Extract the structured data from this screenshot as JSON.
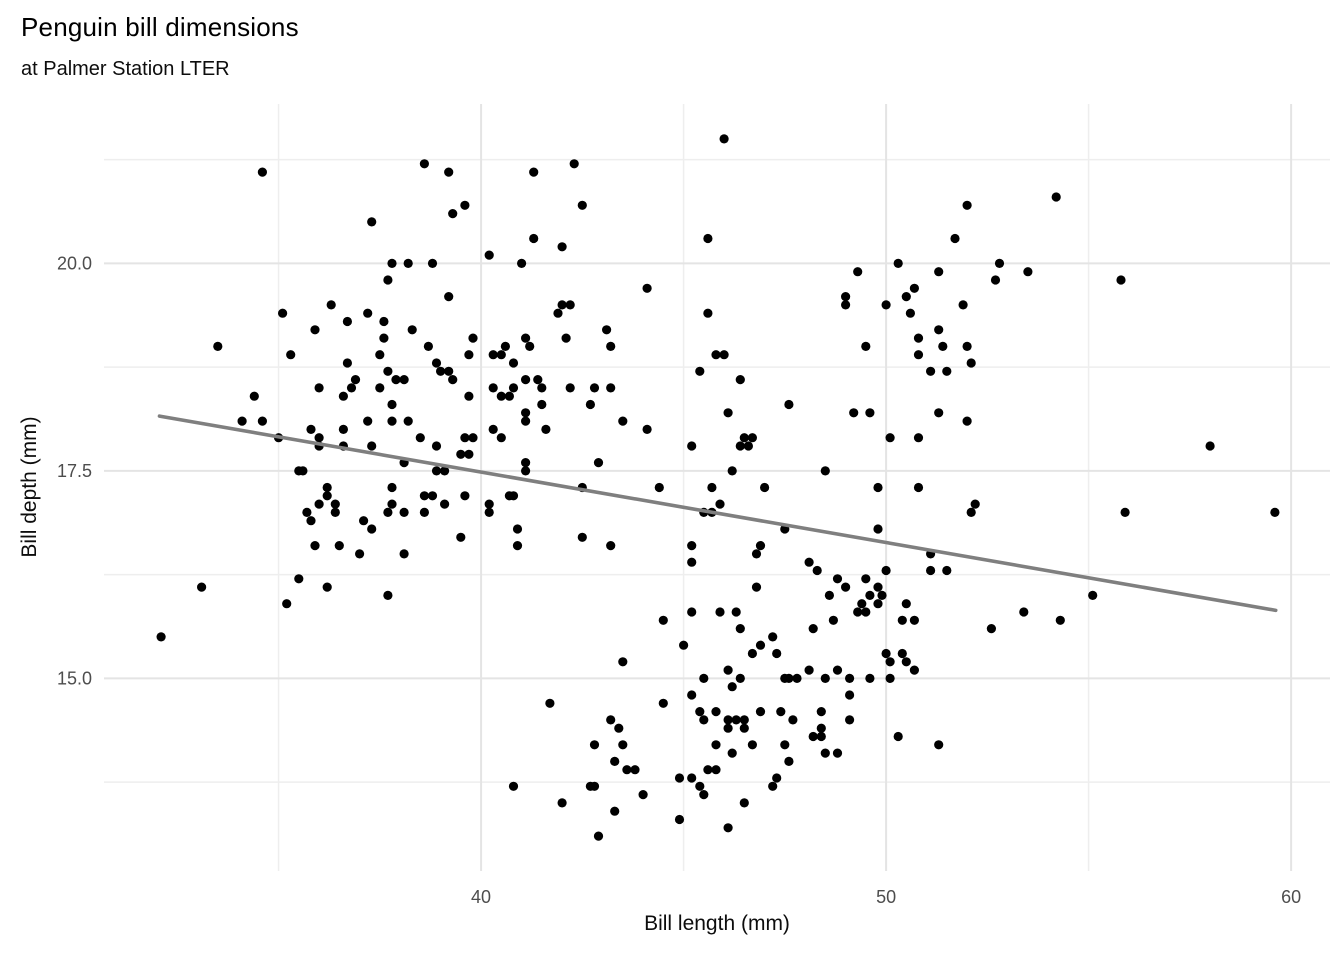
{
  "header": {
    "title": "Penguin bill dimensions",
    "subtitle": "at Palmer Station LTER"
  },
  "chart_data": {
    "type": "scatter",
    "title": "Penguin bill dimensions",
    "subtitle": "at Palmer Station LTER",
    "xlabel": "Bill length (mm)",
    "ylabel": "Bill depth (mm)",
    "xlim": [
      30.69,
      60.96
    ],
    "ylim": [
      12.68,
      21.92
    ],
    "x_major_ticks": [
      40,
      50,
      60
    ],
    "x_tick_labels": [
      "40",
      "50",
      "60"
    ],
    "x_minor_gridlines": [
      35,
      45,
      55
    ],
    "y_major_ticks": [
      15.0,
      17.5,
      20.0
    ],
    "y_tick_labels": [
      "15.0",
      "17.5",
      "20.0"
    ],
    "y_minor_gridlines": [
      13.75,
      16.25,
      18.75,
      21.25
    ],
    "grid": "major and minor gridlines on white background, no panel border, no tick marks",
    "legend": "none",
    "style": {
      "background_color": "#FFFFFF",
      "grid_major_color": "#E4E4E4",
      "grid_minor_color": "#EEEEEE",
      "grid_major_width": 2,
      "grid_minor_width": 1.5,
      "point_color": "#000000",
      "point_radius": 4.6,
      "trend_color": "#7F7F7F",
      "trend_width": 3.6,
      "tick_label_color": "#4D4D4D",
      "tick_label_size": 18
    },
    "trend_line": {
      "type": "linear-regression",
      "x_start": 32.06,
      "y_start": 18.16,
      "x_end": 59.62,
      "y_end": 15.82
    },
    "points": [
      [
        34.6,
        21.1
      ],
      [
        38.6,
        21.2
      ],
      [
        39.2,
        21.1
      ],
      [
        39.3,
        20.6
      ],
      [
        39.6,
        20.7
      ],
      [
        37.3,
        20.5
      ],
      [
        40.2,
        20.1
      ],
      [
        37.8,
        20.0
      ],
      [
        38.2,
        20.0
      ],
      [
        38.8,
        20.0
      ],
      [
        37.7,
        19.8
      ],
      [
        39.2,
        19.6
      ],
      [
        36.3,
        19.5
      ],
      [
        35.1,
        19.4
      ],
      [
        36.7,
        19.3
      ],
      [
        37.2,
        19.4
      ],
      [
        37.6,
        19.3
      ],
      [
        37.6,
        19.1
      ],
      [
        35.9,
        19.2
      ],
      [
        38.3,
        19.2
      ],
      [
        33.5,
        19.0
      ],
      [
        38.7,
        19.0
      ],
      [
        39.8,
        19.1
      ],
      [
        40.6,
        19.0
      ],
      [
        39.7,
        18.9
      ],
      [
        40.3,
        18.9
      ],
      [
        46.0,
        21.5
      ],
      [
        42.3,
        21.2
      ],
      [
        41.3,
        21.1
      ],
      [
        42.5,
        20.7
      ],
      [
        41.3,
        20.3
      ],
      [
        42.0,
        20.2
      ],
      [
        45.6,
        20.3
      ],
      [
        41.0,
        20.0
      ],
      [
        50.3,
        20.0
      ],
      [
        49.3,
        19.9
      ],
      [
        44.1,
        19.7
      ],
      [
        49.0,
        19.6
      ],
      [
        49.0,
        19.5
      ],
      [
        50.7,
        19.7
      ],
      [
        50.5,
        19.6
      ],
      [
        50.0,
        19.5
      ],
      [
        50.6,
        19.4
      ],
      [
        45.6,
        19.4
      ],
      [
        41.9,
        19.4
      ],
      [
        42.0,
        19.5
      ],
      [
        42.2,
        19.5
      ],
      [
        43.1,
        19.2
      ],
      [
        43.2,
        19.0
      ],
      [
        42.1,
        19.1
      ],
      [
        41.1,
        19.1
      ],
      [
        41.2,
        19.0
      ],
      [
        49.5,
        19.0
      ],
      [
        50.8,
        19.1
      ],
      [
        50.8,
        18.9
      ],
      [
        54.2,
        20.8
      ],
      [
        52.0,
        20.7
      ],
      [
        51.7,
        20.3
      ],
      [
        52.8,
        20.0
      ],
      [
        51.3,
        19.9
      ],
      [
        53.5,
        19.9
      ],
      [
        52.7,
        19.8
      ],
      [
        55.8,
        19.8
      ],
      [
        51.9,
        19.5
      ],
      [
        51.3,
        19.2
      ],
      [
        51.4,
        19.0
      ],
      [
        52.0,
        19.0
      ],
      [
        35.3,
        18.9
      ],
      [
        36.7,
        18.8
      ],
      [
        37.5,
        18.9
      ],
      [
        37.7,
        18.7
      ],
      [
        36.9,
        18.6
      ],
      [
        36.8,
        18.5
      ],
      [
        36.0,
        18.5
      ],
      [
        36.6,
        18.4
      ],
      [
        37.9,
        18.6
      ],
      [
        38.1,
        18.6
      ],
      [
        37.5,
        18.5
      ],
      [
        38.9,
        18.8
      ],
      [
        39.0,
        18.7
      ],
      [
        39.2,
        18.7
      ],
      [
        39.3,
        18.6
      ],
      [
        39.7,
        18.4
      ],
      [
        40.5,
        18.9
      ],
      [
        40.8,
        18.8
      ],
      [
        34.4,
        18.4
      ],
      [
        34.1,
        18.1
      ],
      [
        34.6,
        18.1
      ],
      [
        35.0,
        17.9
      ],
      [
        35.8,
        18.0
      ],
      [
        36.0,
        17.9
      ],
      [
        36.0,
        17.8
      ],
      [
        36.6,
        18.0
      ],
      [
        36.6,
        17.8
      ],
      [
        37.3,
        17.8
      ],
      [
        37.2,
        18.1
      ],
      [
        37.8,
        18.3
      ],
      [
        37.8,
        18.1
      ],
      [
        38.2,
        18.1
      ],
      [
        38.1,
        17.6
      ],
      [
        38.5,
        17.9
      ],
      [
        38.9,
        17.8
      ],
      [
        38.9,
        17.5
      ],
      [
        39.1,
        17.5
      ],
      [
        39.6,
        17.9
      ],
      [
        39.8,
        17.9
      ],
      [
        39.5,
        17.7
      ],
      [
        39.7,
        17.7
      ],
      [
        40.3,
        18.5
      ],
      [
        40.5,
        18.4
      ],
      [
        40.7,
        18.4
      ],
      [
        40.3,
        18.0
      ],
      [
        40.5,
        17.9
      ],
      [
        40.8,
        18.5
      ],
      [
        35.5,
        17.5
      ],
      [
        35.6,
        17.5
      ],
      [
        36.2,
        17.3
      ],
      [
        36.2,
        17.2
      ],
      [
        36.4,
        17.1
      ],
      [
        36.4,
        17.0
      ],
      [
        36.0,
        17.1
      ],
      [
        35.7,
        17.0
      ],
      [
        35.8,
        16.9
      ],
      [
        37.1,
        16.9
      ],
      [
        37.3,
        16.8
      ],
      [
        37.8,
        17.3
      ],
      [
        37.8,
        17.1
      ],
      [
        37.7,
        17.0
      ],
      [
        38.1,
        17.0
      ],
      [
        38.6,
        17.2
      ],
      [
        38.8,
        17.2
      ],
      [
        39.1,
        17.1
      ],
      [
        38.6,
        17.0
      ],
      [
        39.6,
        17.2
      ],
      [
        40.2,
        17.1
      ],
      [
        40.2,
        17.0
      ],
      [
        40.7,
        17.2
      ],
      [
        40.8,
        17.2
      ],
      [
        39.5,
        16.7
      ],
      [
        35.9,
        16.6
      ],
      [
        36.5,
        16.6
      ],
      [
        37.0,
        16.5
      ],
      [
        38.1,
        16.5
      ],
      [
        33.1,
        16.1
      ],
      [
        35.5,
        16.2
      ],
      [
        36.2,
        16.1
      ],
      [
        37.7,
        16.0
      ],
      [
        35.2,
        15.9
      ],
      [
        45.8,
        18.9
      ],
      [
        46.0,
        18.9
      ],
      [
        45.4,
        18.7
      ],
      [
        46.4,
        18.6
      ],
      [
        41.1,
        18.6
      ],
      [
        41.4,
        18.6
      ],
      [
        41.5,
        18.5
      ],
      [
        42.2,
        18.5
      ],
      [
        42.8,
        18.5
      ],
      [
        43.2,
        18.5
      ],
      [
        41.5,
        18.3
      ],
      [
        42.7,
        18.3
      ],
      [
        47.6,
        18.3
      ],
      [
        46.1,
        18.2
      ],
      [
        41.1,
        18.2
      ],
      [
        41.1,
        18.1
      ],
      [
        41.6,
        18.0
      ],
      [
        43.5,
        18.1
      ],
      [
        44.1,
        18.0
      ],
      [
        49.2,
        18.2
      ],
      [
        49.6,
        18.2
      ],
      [
        50.1,
        17.9
      ],
      [
        50.8,
        17.9
      ],
      [
        45.2,
        17.8
      ],
      [
        46.5,
        17.9
      ],
      [
        46.7,
        17.9
      ],
      [
        46.4,
        17.8
      ],
      [
        46.6,
        17.8
      ],
      [
        42.9,
        17.6
      ],
      [
        41.1,
        17.6
      ],
      [
        41.1,
        17.5
      ],
      [
        46.2,
        17.5
      ],
      [
        48.5,
        17.5
      ],
      [
        42.5,
        17.3
      ],
      [
        44.4,
        17.3
      ],
      [
        45.7,
        17.3
      ],
      [
        47.0,
        17.3
      ],
      [
        49.8,
        17.3
      ],
      [
        50.8,
        17.3
      ],
      [
        45.9,
        17.1
      ],
      [
        45.5,
        17.0
      ],
      [
        45.7,
        17.0
      ],
      [
        47.5,
        16.8
      ],
      [
        49.8,
        16.8
      ],
      [
        40.9,
        16.8
      ],
      [
        40.9,
        16.6
      ],
      [
        42.5,
        16.7
      ],
      [
        43.2,
        16.6
      ],
      [
        45.2,
        16.6
      ],
      [
        45.2,
        16.4
      ],
      [
        46.9,
        16.6
      ],
      [
        46.8,
        16.5
      ],
      [
        48.1,
        16.4
      ],
      [
        48.3,
        16.3
      ],
      [
        50.0,
        16.3
      ],
      [
        48.8,
        16.2
      ],
      [
        49.0,
        16.1
      ],
      [
        49.5,
        16.2
      ],
      [
        49.6,
        16.0
      ],
      [
        49.4,
        15.9
      ],
      [
        48.6,
        16.0
      ],
      [
        49.8,
        16.1
      ],
      [
        49.9,
        16.0
      ],
      [
        46.8,
        16.1
      ],
      [
        50.5,
        15.9
      ],
      [
        49.8,
        15.9
      ],
      [
        52.1,
        18.8
      ],
      [
        51.5,
        18.7
      ],
      [
        51.1,
        18.7
      ],
      [
        51.3,
        18.2
      ],
      [
        52.0,
        18.1
      ],
      [
        58.0,
        17.8
      ],
      [
        52.2,
        17.1
      ],
      [
        52.1,
        17.0
      ],
      [
        55.9,
        17.0
      ],
      [
        59.6,
        17.0
      ],
      [
        51.1,
        16.5
      ],
      [
        51.1,
        16.3
      ],
      [
        51.5,
        16.3
      ],
      [
        55.1,
        16.0
      ],
      [
        53.4,
        15.8
      ],
      [
        52.6,
        15.6
      ],
      [
        54.3,
        15.7
      ],
      [
        51.3,
        14.2
      ],
      [
        32.1,
        15.5
      ],
      [
        45.2,
        15.8
      ],
      [
        45.9,
        15.8
      ],
      [
        46.3,
        15.8
      ],
      [
        49.3,
        15.8
      ],
      [
        49.5,
        15.8
      ],
      [
        44.5,
        15.7
      ],
      [
        46.4,
        15.6
      ],
      [
        48.2,
        15.6
      ],
      [
        48.7,
        15.7
      ],
      [
        45.0,
        15.4
      ],
      [
        46.9,
        15.4
      ],
      [
        46.7,
        15.3
      ],
      [
        47.2,
        15.5
      ],
      [
        47.3,
        15.3
      ],
      [
        43.5,
        15.2
      ],
      [
        50.4,
        15.7
      ],
      [
        50.7,
        15.7
      ],
      [
        46.1,
        15.1
      ],
      [
        46.2,
        14.9
      ],
      [
        45.5,
        15.0
      ],
      [
        46.4,
        15.0
      ],
      [
        47.5,
        15.0
      ],
      [
        47.6,
        15.0
      ],
      [
        47.8,
        15.0
      ],
      [
        48.1,
        15.1
      ],
      [
        48.5,
        15.0
      ],
      [
        48.8,
        15.1
      ],
      [
        49.1,
        15.0
      ],
      [
        49.1,
        14.8
      ],
      [
        49.6,
        15.0
      ],
      [
        50.1,
        15.0
      ],
      [
        50.0,
        15.3
      ],
      [
        50.1,
        15.2
      ],
      [
        50.4,
        15.3
      ],
      [
        50.5,
        15.2
      ],
      [
        50.7,
        15.1
      ],
      [
        41.7,
        14.7
      ],
      [
        44.5,
        14.7
      ],
      [
        45.2,
        14.8
      ],
      [
        45.4,
        14.6
      ],
      [
        45.5,
        14.5
      ],
      [
        45.8,
        14.6
      ],
      [
        46.1,
        14.5
      ],
      [
        46.3,
        14.5
      ],
      [
        46.1,
        14.4
      ],
      [
        46.5,
        14.5
      ],
      [
        46.5,
        14.4
      ],
      [
        46.9,
        14.6
      ],
      [
        47.4,
        14.6
      ],
      [
        47.7,
        14.5
      ],
      [
        48.4,
        14.6
      ],
      [
        48.4,
        14.4
      ],
      [
        49.1,
        14.5
      ],
      [
        43.2,
        14.5
      ],
      [
        43.4,
        14.4
      ],
      [
        42.8,
        14.2
      ],
      [
        43.5,
        14.2
      ],
      [
        45.8,
        14.2
      ],
      [
        46.2,
        14.1
      ],
      [
        46.7,
        14.2
      ],
      [
        47.5,
        14.2
      ],
      [
        47.6,
        14.0
      ],
      [
        48.2,
        14.3
      ],
      [
        48.4,
        14.3
      ],
      [
        48.5,
        14.1
      ],
      [
        48.8,
        14.1
      ],
      [
        50.3,
        14.3
      ],
      [
        43.3,
        14.0
      ],
      [
        43.6,
        13.9
      ],
      [
        43.8,
        13.9
      ],
      [
        44.0,
        13.6
      ],
      [
        40.8,
        13.7
      ],
      [
        42.0,
        13.5
      ],
      [
        42.7,
        13.7
      ],
      [
        42.8,
        13.7
      ],
      [
        44.9,
        13.8
      ],
      [
        45.2,
        13.8
      ],
      [
        45.4,
        13.7
      ],
      [
        45.5,
        13.6
      ],
      [
        45.6,
        13.9
      ],
      [
        45.8,
        13.9
      ],
      [
        46.5,
        13.5
      ],
      [
        47.3,
        13.8
      ],
      [
        47.2,
        13.7
      ],
      [
        43.3,
        13.4
      ],
      [
        44.9,
        13.3
      ],
      [
        46.1,
        13.2
      ],
      [
        42.9,
        13.1
      ]
    ]
  }
}
